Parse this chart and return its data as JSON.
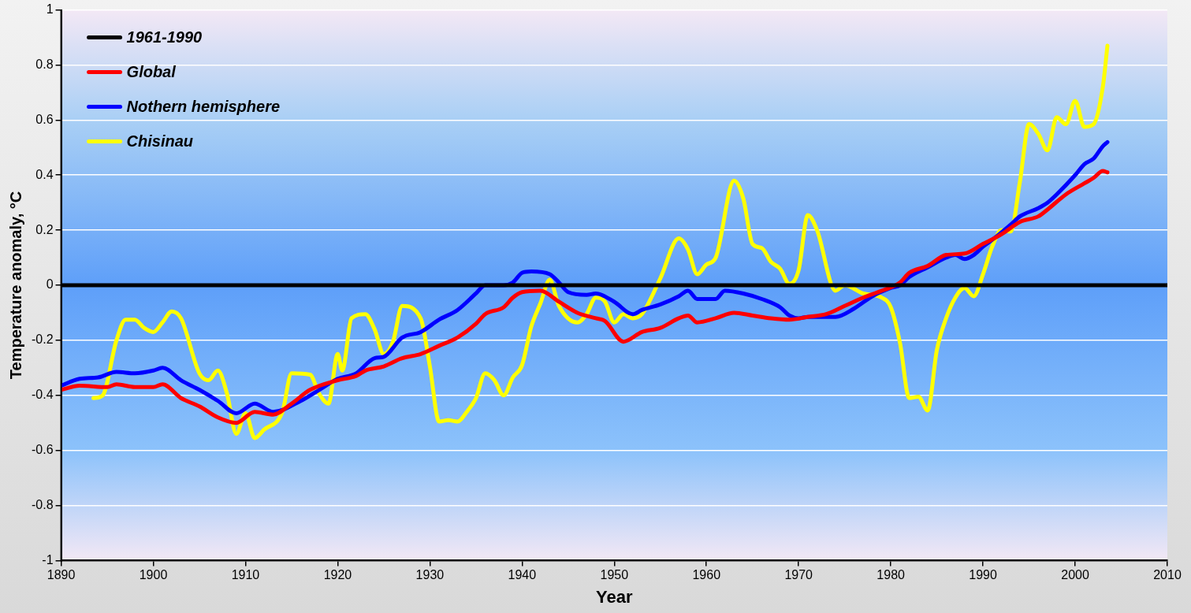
{
  "chart_data": {
    "type": "line",
    "xlabel": "Year",
    "ylabel": "Temperature anomaly, °C",
    "xlim": [
      1890,
      2010
    ],
    "xticks": [
      1890,
      1900,
      1910,
      1920,
      1930,
      1940,
      1950,
      1960,
      1970,
      1980,
      1990,
      2000,
      2010
    ],
    "ylim": [
      -1,
      1
    ],
    "yticks": [
      -1,
      -0.8,
      -0.6,
      -0.4,
      -0.2,
      0,
      0.2,
      0.4,
      0.6,
      0.8,
      1
    ],
    "grid": "y",
    "legend": "top left",
    "marker": "none",
    "line_style": "solid",
    "series": [
      {
        "name": "1961-1990",
        "color": "#000000",
        "x": [
          1890,
          2010
        ],
        "values": [
          0,
          0
        ]
      },
      {
        "name": "Global",
        "color": "#ff0000",
        "x": [
          1890,
          1892,
          1895,
          1896,
          1898,
          1900,
          1901,
          1903,
          1905,
          1907,
          1909,
          1911,
          1913,
          1915,
          1917,
          1920,
          1922,
          1923,
          1925,
          1927,
          1929,
          1931,
          1933,
          1935,
          1936,
          1938,
          1939,
          1940,
          1942,
          1944,
          1946,
          1948,
          1949,
          1951,
          1953,
          1955,
          1957,
          1958,
          1959,
          1961,
          1963,
          1965,
          1967,
          1969,
          1971,
          1973,
          1975,
          1977,
          1979,
          1981,
          1982,
          1984,
          1986,
          1988,
          1990,
          1992,
          1994,
          1996,
          1997,
          1999,
          2001,
          2002,
          2003,
          2003.5
        ],
        "values": [
          -0.38,
          -0.365,
          -0.37,
          -0.36,
          -0.37,
          -0.37,
          -0.36,
          -0.41,
          -0.44,
          -0.48,
          -0.5,
          -0.46,
          -0.47,
          -0.43,
          -0.38,
          -0.345,
          -0.33,
          -0.31,
          -0.295,
          -0.265,
          -0.25,
          -0.22,
          -0.19,
          -0.14,
          -0.105,
          -0.08,
          -0.045,
          -0.025,
          -0.02,
          -0.06,
          -0.1,
          -0.12,
          -0.13,
          -0.205,
          -0.17,
          -0.155,
          -0.12,
          -0.11,
          -0.135,
          -0.12,
          -0.1,
          -0.11,
          -0.12,
          -0.125,
          -0.115,
          -0.105,
          -0.075,
          -0.045,
          -0.02,
          0.01,
          0.045,
          0.07,
          0.11,
          0.115,
          0.15,
          0.185,
          0.23,
          0.25,
          0.275,
          0.33,
          0.37,
          0.39,
          0.415,
          0.41
        ]
      },
      {
        "name": "Nothern hemisphere",
        "color": "#0000ff",
        "x": [
          1890,
          1892,
          1894,
          1896,
          1898,
          1900,
          1901,
          1903,
          1905,
          1907,
          1909,
          1911,
          1913,
          1916,
          1918,
          1920,
          1922,
          1924,
          1925,
          1927,
          1929,
          1931,
          1933,
          1935,
          1936,
          1938,
          1939,
          1940,
          1941,
          1943,
          1944,
          1945,
          1947,
          1948,
          1950,
          1952,
          1953,
          1955,
          1957,
          1958,
          1959,
          1961,
          1962,
          1964,
          1966,
          1968,
          1969,
          1970,
          1971,
          1974,
          1976,
          1978,
          1980,
          1981,
          1982,
          1984,
          1986,
          1987,
          1988,
          1989,
          1990,
          1991,
          1993,
          1994,
          1996,
          1997,
          1998,
          2000,
          2001,
          2002,
          2003,
          2003.5
        ],
        "values": [
          -0.365,
          -0.34,
          -0.335,
          -0.315,
          -0.32,
          -0.31,
          -0.3,
          -0.345,
          -0.38,
          -0.42,
          -0.465,
          -0.43,
          -0.46,
          -0.42,
          -0.38,
          -0.34,
          -0.32,
          -0.265,
          -0.26,
          -0.19,
          -0.17,
          -0.125,
          -0.09,
          -0.03,
          0,
          0,
          0.01,
          0.045,
          0.05,
          0.04,
          0.01,
          -0.025,
          -0.035,
          -0.03,
          -0.06,
          -0.105,
          -0.09,
          -0.07,
          -0.04,
          -0.02,
          -0.05,
          -0.05,
          -0.02,
          -0.03,
          -0.05,
          -0.08,
          -0.11,
          -0.12,
          -0.115,
          -0.115,
          -0.085,
          -0.04,
          -0.01,
          0,
          0.03,
          0.065,
          0.1,
          0.11,
          0.095,
          0.11,
          0.14,
          0.165,
          0.22,
          0.25,
          0.28,
          0.3,
          0.33,
          0.4,
          0.44,
          0.46,
          0.505,
          0.52
        ]
      },
      {
        "name": "Chisinau",
        "color": "#ffff00",
        "x": [
          1893.5,
          1894.5,
          1896,
          1897,
          1898,
          1899,
          1900,
          1901,
          1902,
          1903,
          1905,
          1906,
          1907,
          1908,
          1909,
          1910,
          1911,
          1912,
          1914,
          1915,
          1917,
          1918,
          1919,
          1920,
          1920.5,
          1921.5,
          1923,
          1924,
          1925,
          1926,
          1927,
          1929,
          1930,
          1931,
          1932,
          1933,
          1934,
          1935,
          1936,
          1937,
          1938,
          1939,
          1940,
          1941,
          1942,
          1943,
          1944,
          1946,
          1947,
          1948,
          1949,
          1950,
          1951,
          1952,
          1953,
          1955,
          1957,
          1958,
          1959,
          1960,
          1961,
          1963,
          1964,
          1965,
          1966,
          1967,
          1968,
          1969,
          1970,
          1971,
          1972,
          1974,
          1975,
          1977,
          1979,
          1980,
          1981,
          1982,
          1983,
          1984,
          1985,
          1986,
          1987,
          1988,
          1989,
          1990,
          1991,
          1992,
          1993,
          1994,
          1995,
          1996,
          1997,
          1998,
          1999,
          2000,
          2001,
          2002,
          2003,
          2003.5
        ],
        "values": [
          -0.41,
          -0.4,
          -0.2,
          -0.125,
          -0.125,
          -0.155,
          -0.17,
          -0.135,
          -0.095,
          -0.12,
          -0.32,
          -0.345,
          -0.31,
          -0.395,
          -0.54,
          -0.465,
          -0.555,
          -0.525,
          -0.46,
          -0.32,
          -0.325,
          -0.395,
          -0.43,
          -0.25,
          -0.31,
          -0.12,
          -0.105,
          -0.16,
          -0.25,
          -0.205,
          -0.075,
          -0.12,
          -0.295,
          -0.495,
          -0.49,
          -0.495,
          -0.46,
          -0.41,
          -0.32,
          -0.345,
          -0.4,
          -0.335,
          -0.29,
          -0.15,
          -0.065,
          0.02,
          -0.075,
          -0.135,
          -0.105,
          -0.045,
          -0.06,
          -0.135,
          -0.105,
          -0.12,
          -0.105,
          0.025,
          0.17,
          0.13,
          0.04,
          0.075,
          0.1,
          0.38,
          0.315,
          0.15,
          0.135,
          0.085,
          0.06,
          0.005,
          0.055,
          0.255,
          0.2,
          -0.02,
          0,
          -0.03,
          -0.045,
          -0.08,
          -0.21,
          -0.41,
          -0.405,
          -0.455,
          -0.235,
          -0.12,
          -0.045,
          -0.01,
          -0.04,
          0.04,
          0.14,
          0.2,
          0.195,
          0.375,
          0.585,
          0.55,
          0.49,
          0.61,
          0.585,
          0.67,
          0.575,
          0.585,
          0.72,
          0.87
        ]
      }
    ]
  }
}
